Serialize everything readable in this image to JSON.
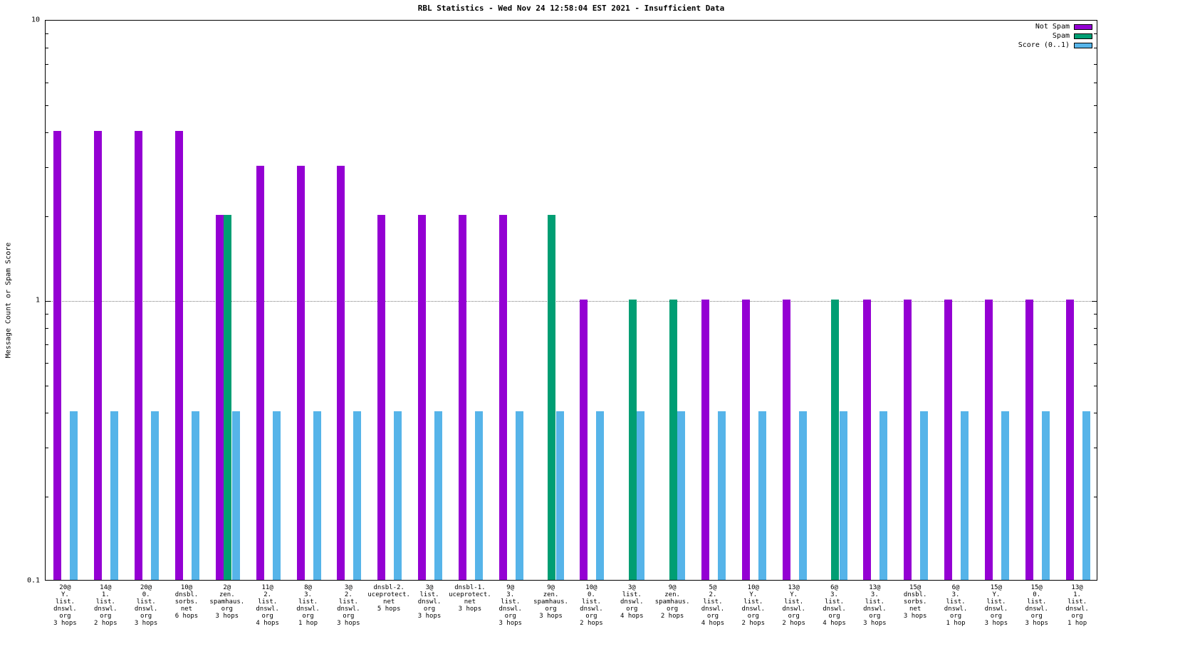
{
  "chart_data": {
    "type": "bar",
    "title": "RBL Statistics - Wed Nov 24 12:58:04 EST 2021 - Insufficient Data",
    "ylabel": "Message Count or Spam Score",
    "xlabel": "",
    "scale": "log",
    "ylim": [
      0.1,
      10
    ],
    "grid": "horizontal dotted at 1",
    "gridlines": [
      1
    ],
    "yticks": [
      {
        "value": 10,
        "label": "10"
      },
      {
        "value": 1,
        "label": "1"
      },
      {
        "value": 0.1,
        "label": "0.1"
      }
    ],
    "legend_position": "top-right inside",
    "series": [
      {
        "name": "Not Spam",
        "key": "not-spam",
        "color": "#9400d3"
      },
      {
        "name": "Spam",
        "key": "spam",
        "color": "#009e73"
      },
      {
        "name": "Score (0..1)",
        "key": "score",
        "color": "#56b4e9"
      }
    ],
    "groups": [
      {
        "label_lines": [
          "20@",
          "Y.",
          "list.",
          "dnswl.",
          "org",
          "3 hops"
        ],
        "values": [
          4,
          null,
          0.4
        ]
      },
      {
        "label_lines": [
          "14@",
          "1.",
          "list.",
          "dnswl.",
          "org",
          "2 hops"
        ],
        "values": [
          4,
          null,
          0.4
        ]
      },
      {
        "label_lines": [
          "20@",
          "0.",
          "list.",
          "dnswl.",
          "org",
          "3 hops"
        ],
        "values": [
          4,
          null,
          0.4
        ]
      },
      {
        "label_lines": [
          "10@",
          "dnsbl.",
          "sorbs.",
          "net",
          "6 hops"
        ],
        "values": [
          4,
          null,
          0.4
        ]
      },
      {
        "label_lines": [
          "2@",
          "zen.",
          "spamhaus.",
          "org",
          "3 hops"
        ],
        "values": [
          2,
          2,
          0.4
        ]
      },
      {
        "label_lines": [
          "11@",
          "2.",
          "list.",
          "dnswl.",
          "org",
          "4 hops"
        ],
        "values": [
          3,
          null,
          0.4
        ]
      },
      {
        "label_lines": [
          "8@",
          "3.",
          "list.",
          "dnswl.",
          "org",
          "1 hop"
        ],
        "values": [
          3,
          null,
          0.4
        ]
      },
      {
        "label_lines": [
          "3@",
          "2.",
          "list.",
          "dnswl.",
          "org",
          "3 hops"
        ],
        "values": [
          3,
          null,
          0.4
        ]
      },
      {
        "label_lines": [
          "dnsbl-2.",
          "uceprotect.",
          "net",
          "5 hops"
        ],
        "values": [
          2,
          null,
          0.4
        ]
      },
      {
        "label_lines": [
          "3@",
          "list.",
          "dnswl.",
          "org",
          "3 hops"
        ],
        "values": [
          2,
          null,
          0.4
        ]
      },
      {
        "label_lines": [
          "dnsbl-1.",
          "uceprotect.",
          "net",
          "3 hops"
        ],
        "values": [
          2,
          null,
          0.4
        ]
      },
      {
        "label_lines": [
          "9@",
          "3.",
          "list.",
          "dnswl.",
          "org",
          "3 hops"
        ],
        "values": [
          2,
          null,
          0.4
        ]
      },
      {
        "label_lines": [
          "9@",
          "zen.",
          "spamhaus.",
          "org",
          "3 hops"
        ],
        "values": [
          null,
          2,
          0.4
        ]
      },
      {
        "label_lines": [
          "10@",
          "0.",
          "list.",
          "dnswl.",
          "org",
          "2 hops"
        ],
        "values": [
          1,
          null,
          0.4
        ]
      },
      {
        "label_lines": [
          "3@",
          "list.",
          "dnswl.",
          "org",
          "4 hops"
        ],
        "values": [
          null,
          1,
          0.4
        ]
      },
      {
        "label_lines": [
          "9@",
          "zen.",
          "spamhaus.",
          "org",
          "2 hops"
        ],
        "values": [
          null,
          1,
          0.4
        ]
      },
      {
        "label_lines": [
          "5@",
          "2.",
          "list.",
          "dnswl.",
          "org",
          "4 hops"
        ],
        "values": [
          1,
          null,
          0.4
        ]
      },
      {
        "label_lines": [
          "10@",
          "Y.",
          "list.",
          "dnswl.",
          "org",
          "2 hops"
        ],
        "values": [
          1,
          null,
          0.4
        ]
      },
      {
        "label_lines": [
          "13@",
          "Y.",
          "list.",
          "dnswl.",
          "org",
          "2 hops"
        ],
        "values": [
          1,
          null,
          0.4
        ]
      },
      {
        "label_lines": [
          "6@",
          "3.",
          "list.",
          "dnswl.",
          "org",
          "4 hops"
        ],
        "values": [
          null,
          1,
          0.4
        ]
      },
      {
        "label_lines": [
          "13@",
          "3.",
          "list.",
          "dnswl.",
          "org",
          "3 hops"
        ],
        "values": [
          1,
          null,
          0.4
        ]
      },
      {
        "label_lines": [
          "15@",
          "dnsbl.",
          "sorbs.",
          "net",
          "3 hops"
        ],
        "values": [
          1,
          null,
          0.4
        ]
      },
      {
        "label_lines": [
          "6@",
          "3.",
          "list.",
          "dnswl.",
          "org",
          "1 hop"
        ],
        "values": [
          1,
          null,
          0.4
        ]
      },
      {
        "label_lines": [
          "15@",
          "Y.",
          "list.",
          "dnswl.",
          "org",
          "3 hops"
        ],
        "values": [
          1,
          null,
          0.4
        ]
      },
      {
        "label_lines": [
          "15@",
          "0.",
          "list.",
          "dnswl.",
          "org",
          "3 hops"
        ],
        "values": [
          1,
          null,
          0.4
        ]
      },
      {
        "label_lines": [
          "13@",
          "1.",
          "list.",
          "dnswl.",
          "org",
          "1 hop"
        ],
        "values": [
          1,
          null,
          0.4
        ]
      }
    ]
  }
}
